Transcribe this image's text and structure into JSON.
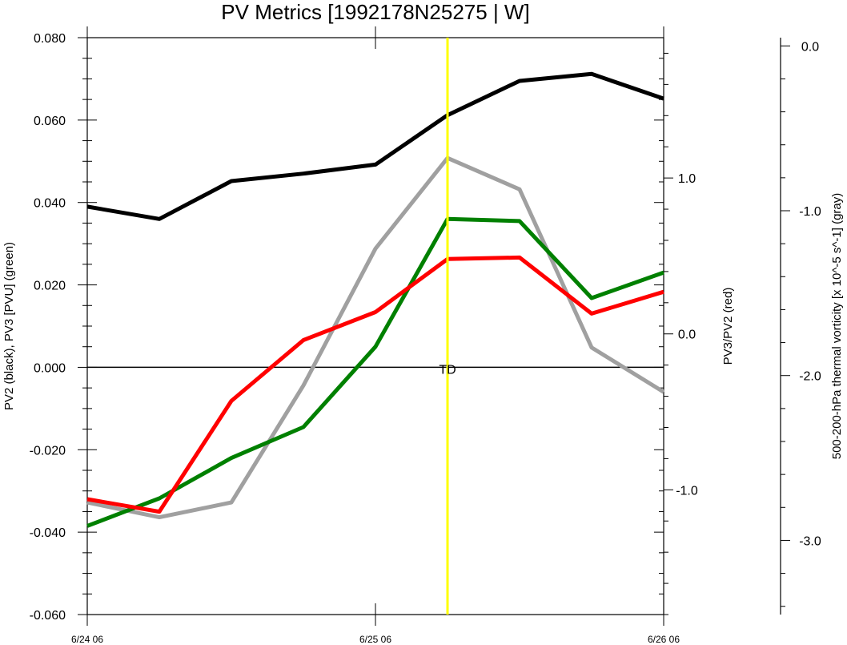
{
  "chart_data": {
    "type": "line",
    "title": "PV Metrics [1992178N25275 | W]",
    "x_tick_labels": [
      "6/24 06",
      "6/25 06",
      "6/26 06"
    ],
    "x_range": [
      0,
      8
    ],
    "left_axis": {
      "label": "PV2 (black), PV3 [PVU] (green)",
      "range": [
        -0.06,
        0.08
      ],
      "ticks": [
        "-0.060",
        "-0.040",
        "-0.020",
        "0.000",
        "0.020",
        "0.040",
        "0.060",
        "0.080"
      ]
    },
    "right_axis_1": {
      "label": "PV3/PV2 (red)",
      "range": [
        -1.8,
        1.9
      ],
      "ticks": [
        "-1.0",
        "0.0",
        "1.0"
      ]
    },
    "right_axis_2": {
      "label": "500-200-hPa thermal vorticity [x 10^-5 s^-1] (gray)",
      "range": [
        -3.45,
        0.05
      ],
      "ticks": [
        "-3.0",
        "-2.0",
        "-1.0",
        "0.0"
      ]
    },
    "reference_line": {
      "axis": "left",
      "value": 0.0,
      "color": "#000000"
    },
    "marker": {
      "x": 5,
      "label": "TD",
      "color": "#ffff00"
    },
    "series": [
      {
        "color": "#000000",
        "axis": "left",
        "x": [
          0,
          1,
          2,
          3,
          4,
          5,
          6,
          7,
          8
        ],
        "values": [
          0.039,
          0.036,
          0.0452,
          0.047,
          0.0492,
          0.0612,
          0.0695,
          0.0712,
          0.0652
        ]
      },
      {
        "color": "#008000",
        "axis": "left",
        "x": [
          0,
          1,
          2,
          3,
          4,
          5,
          6,
          7,
          8
        ],
        "values": [
          -0.0385,
          -0.0318,
          -0.022,
          -0.0145,
          0.005,
          0.036,
          0.0355,
          0.0168,
          0.023
        ]
      },
      {
        "color": "#ff0000",
        "axis": "right_axis_1",
        "x": [
          0,
          1,
          2,
          3,
          4,
          5,
          6,
          7,
          8
        ],
        "values": [
          -1.06,
          -1.14,
          -0.43,
          -0.04,
          0.14,
          0.48,
          0.49,
          0.13,
          0.27
        ]
      },
      {
        "color": "#a0a0a0",
        "axis": "right_axis_2",
        "x": [
          0,
          1,
          2,
          3,
          4,
          5,
          6,
          7,
          8
        ],
        "values": [
          -2.77,
          -2.86,
          -2.77,
          -2.06,
          -1.23,
          -0.68,
          -0.87,
          -1.83,
          -2.1
        ]
      }
    ]
  }
}
